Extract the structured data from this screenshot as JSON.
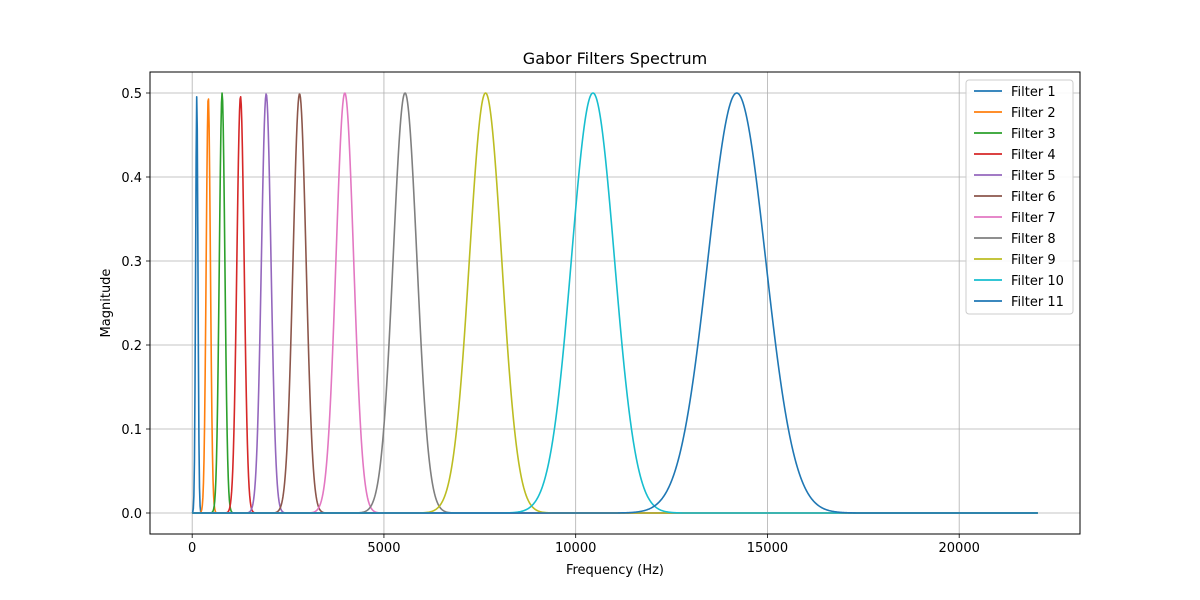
{
  "chart_data": {
    "type": "line",
    "title": "Gabor Filters Spectrum",
    "xlabel": "Frequency (Hz)",
    "ylabel": "Magnitude",
    "xlim": [
      -1100,
      23150
    ],
    "ylim": [
      -0.025,
      0.525
    ],
    "xticks": [
      0,
      5000,
      10000,
      15000,
      20000
    ],
    "yticks": [
      0.0,
      0.1,
      0.2,
      0.3,
      0.4,
      0.5
    ],
    "xtick_labels": [
      "0",
      "5000",
      "10000",
      "15000",
      "20000"
    ],
    "ytick_labels": [
      "0.0",
      "0.1",
      "0.2",
      "0.3",
      "0.4",
      "0.5"
    ],
    "x_domain": [
      0,
      22050
    ],
    "grid": true,
    "legend_position": "top-right",
    "series": [
      {
        "name": "Filter 1",
        "color": "#1f77b4",
        "center": 120,
        "sigma": 30,
        "peak": 0.497
      },
      {
        "name": "Filter 2",
        "color": "#ff7f0e",
        "center": 420,
        "sigma": 55,
        "peak": 0.496
      },
      {
        "name": "Filter 3",
        "color": "#2ca02c",
        "center": 780,
        "sigma": 72,
        "peak": 0.5
      },
      {
        "name": "Filter 4",
        "color": "#d62728",
        "center": 1260,
        "sigma": 95,
        "peak": 0.496
      },
      {
        "name": "Filter 5",
        "color": "#9467bd",
        "center": 1930,
        "sigma": 125,
        "peak": 0.499
      },
      {
        "name": "Filter 6",
        "color": "#8c564b",
        "center": 2800,
        "sigma": 170,
        "peak": 0.499
      },
      {
        "name": "Filter 7",
        "color": "#e377c2",
        "center": 3980,
        "sigma": 230,
        "peak": 0.5
      },
      {
        "name": "Filter 8",
        "color": "#7f7f7f",
        "center": 5550,
        "sigma": 310,
        "peak": 0.5
      },
      {
        "name": "Filter 9",
        "color": "#bcbd22",
        "center": 7650,
        "sigma": 420,
        "peak": 0.5
      },
      {
        "name": "Filter 10",
        "color": "#17becf",
        "center": 10450,
        "sigma": 560,
        "peak": 0.5
      },
      {
        "name": "Filter 11",
        "color": "#1f77b4",
        "center": 14200,
        "sigma": 750,
        "peak": 0.5
      }
    ]
  }
}
